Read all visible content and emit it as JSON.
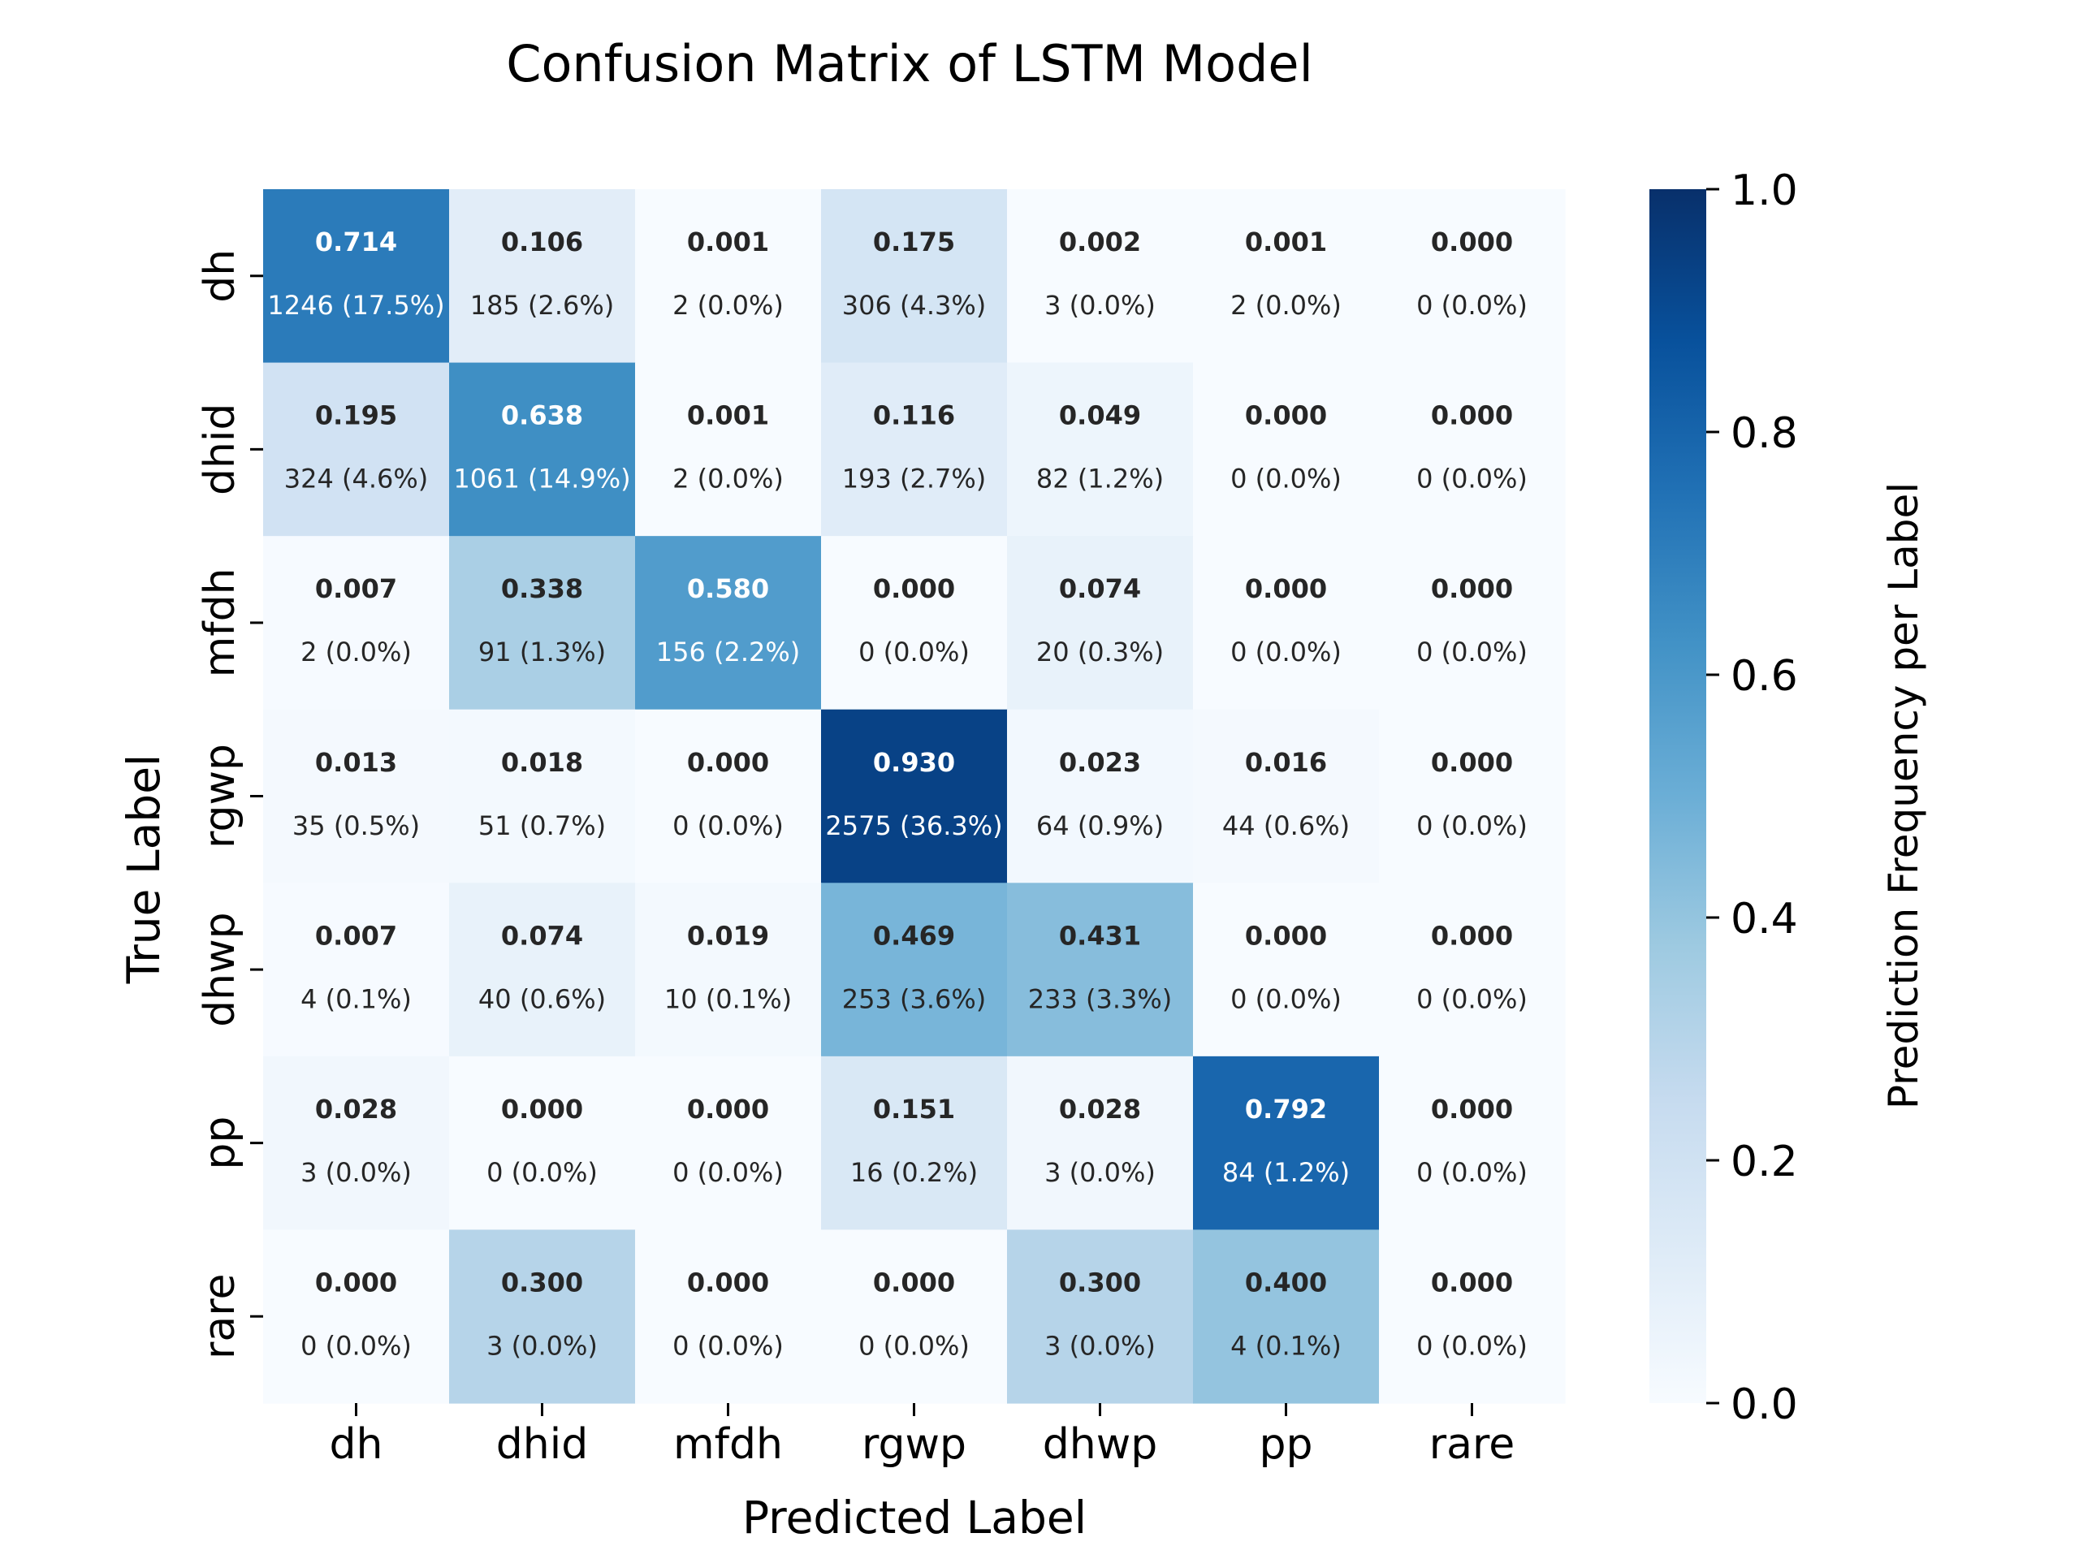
{
  "chart_data": {
    "type": "heatmap",
    "title": "Confusion Matrix of LSTM Model",
    "xlabel": "Predicted Label",
    "ylabel": "True Label",
    "x_categories": [
      "dh",
      "dhid",
      "mfdh",
      "rgwp",
      "dhwp",
      "pp",
      "rare"
    ],
    "y_categories": [
      "dh",
      "dhid",
      "mfdh",
      "rgwp",
      "dhwp",
      "pp",
      "rare"
    ],
    "values": [
      [
        0.714,
        0.106,
        0.001,
        0.175,
        0.002,
        0.001,
        0.0
      ],
      [
        0.195,
        0.638,
        0.001,
        0.116,
        0.049,
        0.0,
        0.0
      ],
      [
        0.007,
        0.338,
        0.58,
        0.0,
        0.074,
        0.0,
        0.0
      ],
      [
        0.013,
        0.018,
        0.0,
        0.93,
        0.023,
        0.016,
        0.0
      ],
      [
        0.007,
        0.074,
        0.019,
        0.469,
        0.431,
        0.0,
        0.0
      ],
      [
        0.028,
        0.0,
        0.0,
        0.151,
        0.028,
        0.792,
        0.0
      ],
      [
        0.0,
        0.3,
        0.0,
        0.0,
        0.3,
        0.4,
        0.0
      ]
    ],
    "value_labels": [
      [
        "0.714",
        "0.106",
        "0.001",
        "0.175",
        "0.002",
        "0.001",
        "0.000"
      ],
      [
        "0.195",
        "0.638",
        "0.001",
        "0.116",
        "0.049",
        "0.000",
        "0.000"
      ],
      [
        "0.007",
        "0.338",
        "0.580",
        "0.000",
        "0.074",
        "0.000",
        "0.000"
      ],
      [
        "0.013",
        "0.018",
        "0.000",
        "0.930",
        "0.023",
        "0.016",
        "0.000"
      ],
      [
        "0.007",
        "0.074",
        "0.019",
        "0.469",
        "0.431",
        "0.000",
        "0.000"
      ],
      [
        "0.028",
        "0.000",
        "0.000",
        "0.151",
        "0.028",
        "0.792",
        "0.000"
      ],
      [
        "0.000",
        "0.300",
        "0.000",
        "0.000",
        "0.300",
        "0.400",
        "0.000"
      ]
    ],
    "count_labels": [
      [
        "1246 (17.5%)",
        "185 (2.6%)",
        "2 (0.0%)",
        "306 (4.3%)",
        "3 (0.0%)",
        "2 (0.0%)",
        "0 (0.0%)"
      ],
      [
        "324 (4.6%)",
        "1061 (14.9%)",
        "2 (0.0%)",
        "193 (2.7%)",
        "82 (1.2%)",
        "0 (0.0%)",
        "0 (0.0%)"
      ],
      [
        "2 (0.0%)",
        "91 (1.3%)",
        "156 (2.2%)",
        "0 (0.0%)",
        "20 (0.3%)",
        "0 (0.0%)",
        "0 (0.0%)"
      ],
      [
        "35 (0.5%)",
        "51 (0.7%)",
        "0 (0.0%)",
        "2575 (36.3%)",
        "64 (0.9%)",
        "44 (0.6%)",
        "0 (0.0%)"
      ],
      [
        "4 (0.1%)",
        "40 (0.6%)",
        "10 (0.1%)",
        "253 (3.6%)",
        "233 (3.3%)",
        "0 (0.0%)",
        "0 (0.0%)"
      ],
      [
        "3 (0.0%)",
        "0 (0.0%)",
        "0 (0.0%)",
        "16 (0.2%)",
        "3 (0.0%)",
        "84 (1.2%)",
        "0 (0.0%)"
      ],
      [
        "0 (0.0%)",
        "3 (0.0%)",
        "0 (0.0%)",
        "0 (0.0%)",
        "3 (0.0%)",
        "4 (0.1%)",
        "0 (0.0%)"
      ]
    ],
    "colorbar": {
      "label": "Prediction Frequency per Label",
      "range": [
        0,
        1
      ],
      "ticks": [
        0.0,
        0.2,
        0.4,
        0.6,
        0.8,
        1.0
      ],
      "tick_labels": [
        "0.0",
        "0.2",
        "0.4",
        "0.6",
        "0.8",
        "1.0"
      ],
      "colormap": "Blues"
    },
    "grid": false,
    "legend": "colorbar-right"
  }
}
